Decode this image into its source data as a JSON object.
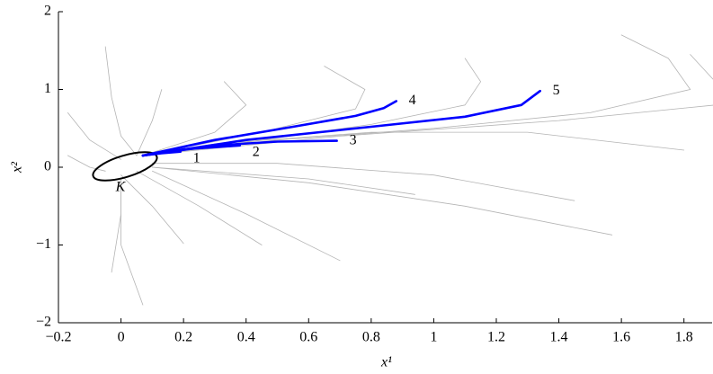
{
  "chart_data": {
    "type": "line",
    "xlabel": "x¹",
    "ylabel": "x²",
    "annotation": "K",
    "xlim": [
      -0.2,
      1.89
    ],
    "ylim": [
      -2,
      2
    ],
    "xticks": [
      {
        "value": -0.2,
        "label": "−0.2"
      },
      0,
      0.2,
      0.4,
      0.6,
      0.8,
      1,
      1.2,
      1.4,
      1.6,
      1.8
    ],
    "yticks": [
      {
        "value": -2,
        "label": "−2"
      },
      {
        "value": -1,
        "label": "−1"
      },
      0,
      1,
      2
    ],
    "series": [
      {
        "color": "#b4b4b4",
        "x": [
          1.6,
          1.75,
          1.82,
          1.5,
          1.0,
          0.5,
          0.07
        ],
        "values": [
          1.7,
          1.4,
          1.0,
          0.7,
          0.5,
          0.35,
          0.15
        ]
      },
      {
        "color": "#b4b4b4",
        "x": [
          1.82,
          1.9,
          1.9,
          1.4,
          0.7,
          0.07
        ],
        "values": [
          1.45,
          1.1,
          0.8,
          0.6,
          0.4,
          0.15
        ]
      },
      {
        "color": "#b4b4b4",
        "x": [
          1.1,
          1.15,
          1.1,
          0.8,
          0.4,
          0.07
        ],
        "values": [
          1.4,
          1.1,
          0.8,
          0.55,
          0.32,
          0.15
        ]
      },
      {
        "color": "#b4b4b4",
        "x": [
          0.65,
          0.78,
          0.75,
          0.45,
          0.07
        ],
        "values": [
          1.3,
          1.0,
          0.75,
          0.45,
          0.15
        ]
      },
      {
        "color": "#b4b4b4",
        "x": [
          0.33,
          0.4,
          0.3,
          0.07
        ],
        "values": [
          1.1,
          0.8,
          0.45,
          0.15
        ]
      },
      {
        "color": "#b4b4b4",
        "x": [
          0.13,
          0.1,
          0.05
        ],
        "values": [
          1.0,
          0.6,
          0.15
        ]
      },
      {
        "color": "#b4b4b4",
        "x": [
          -0.05,
          -0.03,
          0.0,
          0.05
        ],
        "values": [
          1.55,
          0.9,
          0.4,
          0.15
        ]
      },
      {
        "color": "#b4b4b4",
        "x": [
          -0.17,
          -0.1,
          0.0
        ],
        "values": [
          0.7,
          0.35,
          0.1
        ]
      },
      {
        "color": "#b4b4b4",
        "x": [
          1.8,
          1.3,
          0.8,
          0.3,
          0.07
        ],
        "values": [
          0.22,
          0.45,
          0.45,
          0.3,
          0.15
        ]
      },
      {
        "color": "#b4b4b4",
        "x": [
          1.45,
          1.0,
          0.5,
          0.1
        ],
        "values": [
          -0.43,
          -0.1,
          0.05,
          0.05
        ]
      },
      {
        "color": "#b4b4b4",
        "x": [
          1.57,
          1.1,
          0.6,
          0.1
        ],
        "values": [
          -0.87,
          -0.5,
          -0.2,
          0.0
        ]
      },
      {
        "color": "#b4b4b4",
        "x": [
          0.94,
          0.6,
          0.1
        ],
        "values": [
          -0.35,
          -0.15,
          0.0
        ]
      },
      {
        "color": "#b4b4b4",
        "x": [
          0.7,
          0.4,
          0.1
        ],
        "values": [
          -1.2,
          -0.6,
          -0.05
        ]
      },
      {
        "color": "#b4b4b4",
        "x": [
          0.45,
          0.25,
          0.05
        ],
        "values": [
          -1.0,
          -0.5,
          -0.05
        ]
      },
      {
        "color": "#b4b4b4",
        "x": [
          0.2,
          0.1,
          0.0
        ],
        "values": [
          -0.98,
          -0.5,
          -0.1
        ]
      },
      {
        "color": "#b4b4b4",
        "x": [
          -0.03,
          0.0,
          0.0
        ],
        "values": [
          -1.35,
          -0.6,
          -0.15
        ]
      },
      {
        "color": "#b4b4b4",
        "x": [
          0.07,
          0.0,
          0.0
        ],
        "values": [
          -1.77,
          -1.0,
          -0.2
        ]
      },
      {
        "color": "#b4b4b4",
        "x": [
          -0.17,
          -0.1,
          -0.05
        ],
        "values": [
          0.15,
          0.0,
          -0.05
        ]
      },
      {
        "color": "#0000ff",
        "name": "1",
        "x": [
          0.07,
          0.13,
          0.19
        ],
        "values": [
          0.15,
          0.18,
          0.2
        ]
      },
      {
        "color": "#0000ff",
        "name": "2",
        "x": [
          0.07,
          0.2,
          0.38
        ],
        "values": [
          0.15,
          0.23,
          0.28
        ]
      },
      {
        "color": "#0000ff",
        "name": "3",
        "x": [
          0.07,
          0.3,
          0.5,
          0.69
        ],
        "values": [
          0.15,
          0.28,
          0.33,
          0.34
        ]
      },
      {
        "color": "#0000ff",
        "name": "4",
        "x": [
          0.07,
          0.3,
          0.55,
          0.75,
          0.84,
          0.88
        ],
        "values": [
          0.15,
          0.35,
          0.52,
          0.66,
          0.76,
          0.85
        ]
      },
      {
        "color": "#0000ff",
        "name": "5",
        "x": [
          0.07,
          0.4,
          0.8,
          1.1,
          1.28,
          1.34
        ],
        "values": [
          0.15,
          0.35,
          0.52,
          0.65,
          0.8,
          0.98
        ]
      }
    ]
  }
}
